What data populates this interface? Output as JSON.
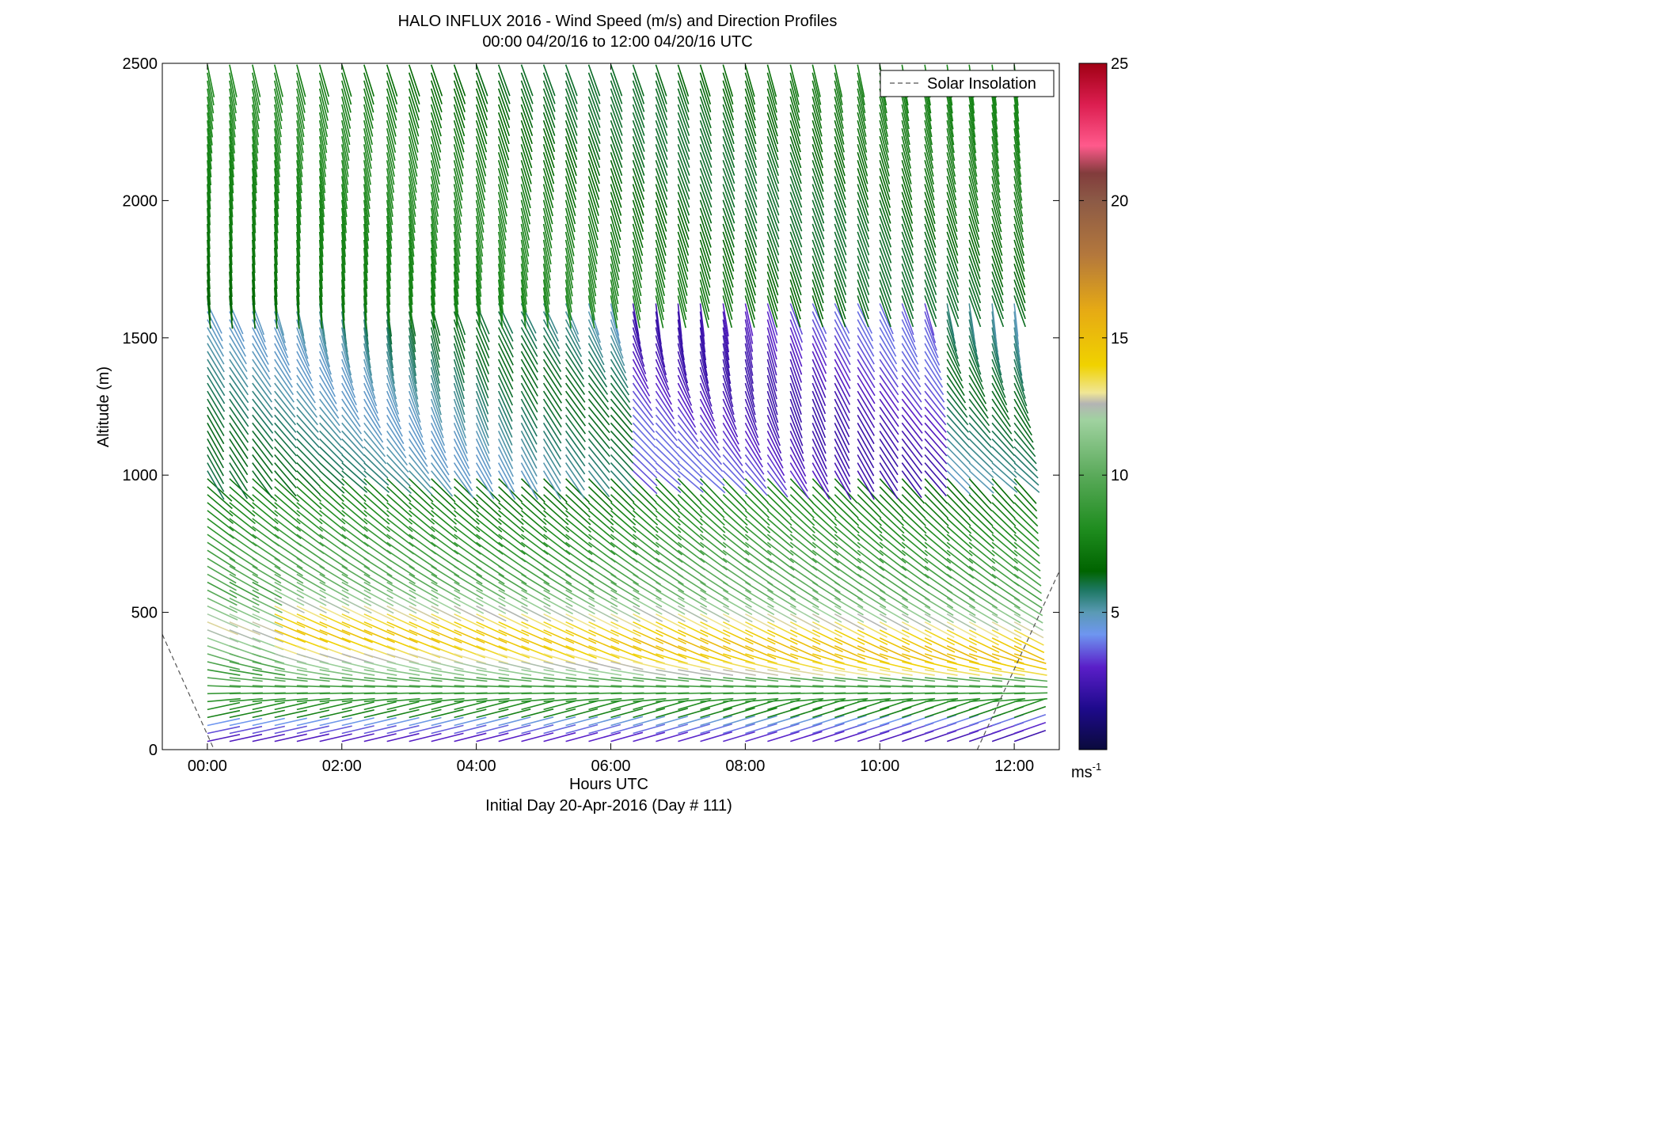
{
  "chart_data": {
    "type": "wind-barb-profile",
    "title": "HALO INFLUX 2016 - Wind Speed (m/s) and Direction Profiles",
    "subtitle": "00:00 04/20/16 to 12:00 04/20/16  UTC",
    "xlabel": "Hours UTC",
    "xlabel2": "Initial Day 20-Apr-2016 (Day # 111)",
    "ylabel": "Altitude (m)",
    "xlim": [
      -0.67,
      12.67
    ],
    "ylim": [
      0,
      2500
    ],
    "xticks": [
      0,
      2,
      4,
      6,
      8,
      10,
      12
    ],
    "xtick_labels": [
      "00:00",
      "02:00",
      "04:00",
      "06:00",
      "08:00",
      "10:00",
      "12:00"
    ],
    "yticks": [
      0,
      500,
      1000,
      1500,
      2000,
      2500
    ],
    "ytick_labels": [
      "0",
      "500",
      "1000",
      "1500",
      "2000",
      "2500"
    ],
    "legend": {
      "label": "Solar Insolation",
      "placement": "top-right",
      "style": "dashed",
      "color": "#555555"
    },
    "colorbar": {
      "range": [
        0,
        25
      ],
      "ticks": [
        5,
        10,
        15,
        20,
        25
      ],
      "tick_labels": [
        "5",
        "10",
        "15",
        "20",
        "25"
      ],
      "unit_label": "ms",
      "unit_exponent": "-1",
      "stops": [
        {
          "v": 0,
          "c": "#0a0a3c"
        },
        {
          "v": 1.5,
          "c": "#1e0a8c"
        },
        {
          "v": 3,
          "c": "#5a1ec8"
        },
        {
          "v": 4.2,
          "c": "#6e96f0"
        },
        {
          "v": 5,
          "c": "#5a9ab4"
        },
        {
          "v": 5.8,
          "c": "#1e7864"
        },
        {
          "v": 6.5,
          "c": "#006400"
        },
        {
          "v": 8,
          "c": "#1e8c1e"
        },
        {
          "v": 10,
          "c": "#5aaa5a"
        },
        {
          "v": 12,
          "c": "#a0d2a0"
        },
        {
          "v": 12.6,
          "c": "#b4b4b4"
        },
        {
          "v": 13,
          "c": "#f0e696"
        },
        {
          "v": 14,
          "c": "#f0d200"
        },
        {
          "v": 16,
          "c": "#e6aa14"
        },
        {
          "v": 18,
          "c": "#b4783c"
        },
        {
          "v": 20,
          "c": "#8c5a46"
        },
        {
          "v": 21,
          "c": "#823c3c"
        },
        {
          "v": 22,
          "c": "#ff5a8c"
        },
        {
          "v": 23.5,
          "c": "#dc1e50"
        },
        {
          "v": 25,
          "c": "#a00014"
        }
      ]
    },
    "barb_times_hours": [
      0.0,
      0.33,
      0.67,
      1.0,
      1.33,
      1.67,
      2.0,
      2.33,
      2.67,
      3.0,
      3.33,
      3.67,
      4.0,
      4.33,
      4.67,
      5.0,
      5.33,
      5.67,
      6.0,
      6.33,
      6.67,
      7.0,
      7.33,
      7.67,
      8.0,
      8.33,
      8.67,
      9.0,
      9.33,
      9.67,
      10.0,
      10.33,
      10.67,
      11.0,
      11.33,
      11.67,
      12.0
    ],
    "profile_regimes": [
      {
        "alt_from": 0,
        "alt_to": 120,
        "speed": 3.5,
        "note": "weak, westerly near surface"
      },
      {
        "alt_from": 120,
        "alt_to": 300,
        "speed": 8,
        "note": "green westerly"
      },
      {
        "alt_from": 300,
        "alt_to": 600,
        "speed": 14,
        "note": "low-level jet, yellow-orange, northwesterly"
      },
      {
        "alt_from": 600,
        "alt_to": 1000,
        "speed": 9,
        "note": "green, northwesterly"
      },
      {
        "alt_from": 1000,
        "alt_to": 1600,
        "speed": 5,
        "note": "blue/purple, variable"
      },
      {
        "alt_from": 1600,
        "alt_to": 2500,
        "speed": 7,
        "note": "green, northerly"
      }
    ],
    "solar_insolation": {
      "segments": [
        {
          "x": [
            -0.67,
            0.1
          ],
          "y": [
            420,
            0
          ]
        },
        {
          "x": [
            11.45,
            12.67
          ],
          "y": [
            0,
            650
          ]
        }
      ]
    }
  }
}
